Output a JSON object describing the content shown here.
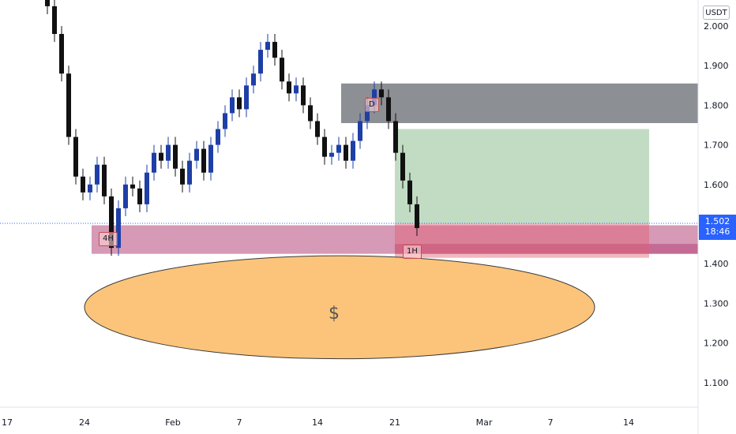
{
  "chart_data": {
    "type": "candlestick",
    "quote_currency": "USDT",
    "ylim": [
      1.03,
      2.07
    ],
    "y_ticks": [
      "2.000",
      "1.900",
      "1.800",
      "1.700",
      "1.600",
      "1.500",
      "1.400",
      "1.300",
      "1.200",
      "1.100"
    ],
    "x_ticks": [
      "17",
      "24",
      "Feb",
      "7",
      "14",
      "21",
      "Mar",
      "7",
      "14"
    ],
    "last_price": "1.502",
    "countdown": "18:46",
    "series": [
      {
        "close": [
          2.05,
          1.98,
          1.88,
          1.72,
          1.62,
          1.58,
          1.6,
          1.65,
          1.57,
          1.44,
          1.54,
          1.6,
          1.59,
          1.55,
          1.63,
          1.68,
          1.66,
          1.7,
          1.64,
          1.6,
          1.66,
          1.69,
          1.63,
          1.7,
          1.74,
          1.78,
          1.82,
          1.79,
          1.85,
          1.88,
          1.94,
          1.96,
          1.92,
          1.86,
          1.83,
          1.85,
          1.8,
          1.76,
          1.72,
          1.67,
          1.68,
          1.7,
          1.66,
          1.71,
          1.76,
          1.8,
          1.84,
          1.82,
          1.76,
          1.68,
          1.61,
          1.55,
          1.49
        ]
      }
    ],
    "zones": [
      {
        "label": "D",
        "low": 1.755,
        "high": 1.855,
        "color": "#787b80"
      },
      {
        "label": "4H",
        "low": 1.425,
        "high": 1.497,
        "color": "#b4467a"
      },
      {
        "label": "1H",
        "low": 1.425,
        "high": 1.45,
        "color": "#b4467a"
      }
    ],
    "position": {
      "entry": 1.502,
      "target": 1.74,
      "stop": 1.415
    },
    "target_zone": {
      "label": "$",
      "center": 1.29,
      "half_height": 0.13
    }
  }
}
